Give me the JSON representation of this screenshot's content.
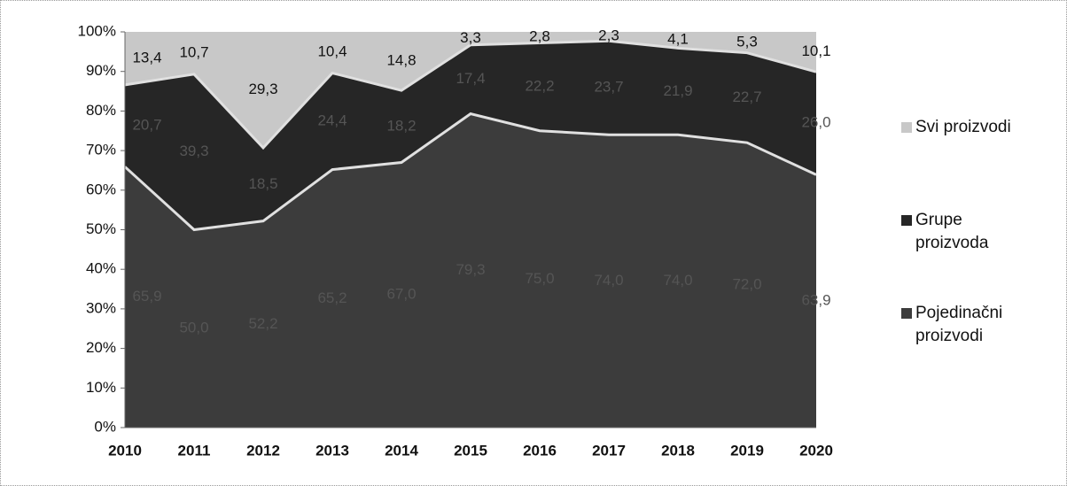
{
  "chart_data": {
    "type": "stacked_area",
    "categories": [
      "2010",
      "2011",
      "2012",
      "2013",
      "2014",
      "2015",
      "2016",
      "2017",
      "2018",
      "2019",
      "2020"
    ],
    "series": [
      {
        "name": "Pojedinačni proizvodi",
        "color": "#3c3c3c",
        "values": [
          65.9,
          50.0,
          52.2,
          65.2,
          67.0,
          79.3,
          75.0,
          74.0,
          74.0,
          72.0,
          63.9
        ],
        "value_labels": [
          "65,9",
          "50,0",
          "52,2",
          "65,2",
          "67,0",
          "79,3",
          "75,0",
          "74,0",
          "74,0",
          "72,0",
          "63,9"
        ]
      },
      {
        "name": "Grupe proizvoda",
        "color": "#262626",
        "values": [
          20.7,
          39.3,
          18.5,
          24.4,
          18.2,
          17.4,
          22.2,
          23.7,
          21.9,
          22.7,
          26.0
        ],
        "value_labels": [
          "20,7",
          "39,3",
          "18,5",
          "24,4",
          "18,2",
          "17,4",
          "22,2",
          "23,7",
          "21,9",
          "22,7",
          "26,0"
        ]
      },
      {
        "name": "Svi proizvodi",
        "color": "#c8c8c8",
        "values": [
          13.4,
          10.7,
          29.3,
          10.4,
          14.8,
          3.3,
          2.8,
          2.3,
          4.1,
          5.3,
          10.1
        ],
        "value_labels": [
          "13,4",
          "10,7",
          "29,3",
          "10,4",
          "14,8",
          "3,3",
          "2,8",
          "2,3",
          "4,1",
          "5,3",
          "10,1"
        ]
      }
    ],
    "ylim": [
      0,
      100
    ],
    "yticks": [
      {
        "value": 0,
        "label": "0%"
      },
      {
        "value": 10,
        "label": "10%"
      },
      {
        "value": 20,
        "label": "20%"
      },
      {
        "value": 30,
        "label": "30%"
      },
      {
        "value": 40,
        "label": "40%"
      },
      {
        "value": 50,
        "label": "50%"
      },
      {
        "value": 60,
        "label": "60%"
      },
      {
        "value": 70,
        "label": "70%"
      },
      {
        "value": 80,
        "label": "80%"
      },
      {
        "value": 90,
        "label": "90%"
      },
      {
        "value": 100,
        "label": "100%"
      }
    ],
    "legend": "right"
  }
}
